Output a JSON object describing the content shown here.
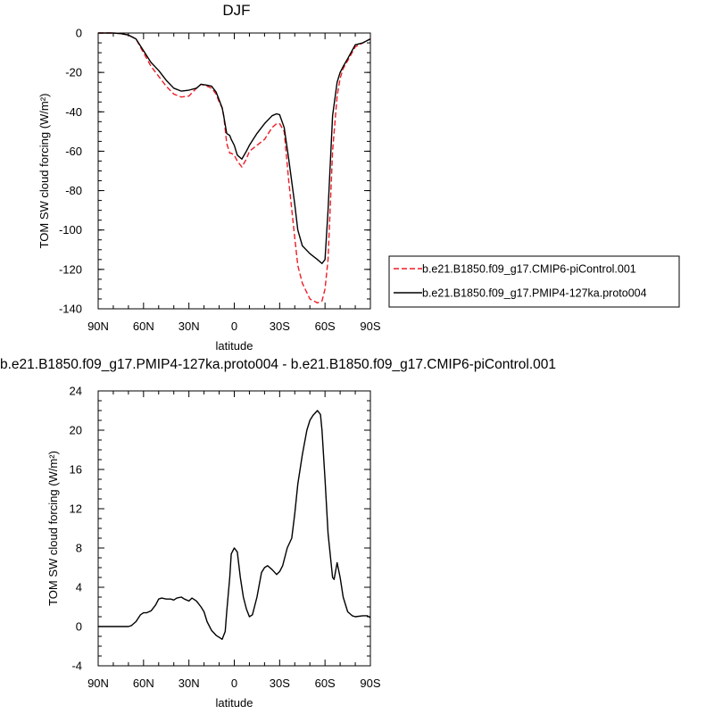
{
  "chart_data": [
    {
      "type": "line",
      "title": "DJF",
      "xlabel": "latitude",
      "ylabel": "TOM SW cloud forcing (W/m²)",
      "xlim": [
        90,
        -90
      ],
      "ylim": [
        -140,
        0
      ],
      "x_ticks": [
        90,
        60,
        30,
        0,
        -30,
        -60,
        -90
      ],
      "x_tick_labels": [
        "90N",
        "60N",
        "30N",
        "0",
        "30S",
        "60S",
        "90S"
      ],
      "y_ticks": [
        0,
        -20,
        -40,
        -60,
        -80,
        -100,
        -120,
        -140
      ],
      "y_tick_labels": [
        "0",
        "-20",
        "-40",
        "-60",
        "-80",
        "-100",
        "-120",
        "-140"
      ],
      "legend_position": "right",
      "series": [
        {
          "name": "b.e21.B1850.f09_g17.CMIP6-piControl.001",
          "color": "#ee1c25",
          "dash": "dashed",
          "x": [
            90,
            80,
            75,
            70,
            65,
            60,
            55,
            50,
            45,
            40,
            35,
            30,
            25,
            22,
            18,
            15,
            12,
            10,
            8,
            7,
            5,
            3,
            2,
            0,
            -2,
            -5,
            -8,
            -10,
            -15,
            -20,
            -25,
            -28,
            -30,
            -33,
            -36,
            -40,
            -42,
            -45,
            -50,
            -55,
            -58,
            -60,
            -62,
            -65,
            -68,
            -70,
            -72,
            -75,
            -80,
            -85,
            -90
          ],
          "y": [
            0,
            0,
            -0.3,
            -1,
            -3,
            -10,
            -17,
            -22,
            -27,
            -31,
            -32.5,
            -32,
            -28,
            -26,
            -27,
            -28,
            -31,
            -35,
            -38,
            -42,
            -56,
            -61,
            -61,
            -62,
            -65,
            -68,
            -64,
            -60,
            -57,
            -54,
            -48,
            -46,
            -46,
            -50,
            -75,
            -104,
            -118,
            -127,
            -135,
            -137,
            -136,
            -130,
            -115,
            -60,
            -32,
            -23,
            -18,
            -14,
            -7,
            -5,
            -3
          ]
        },
        {
          "name": "b.e21.B1850.f09_g17.PMIP4-127ka.proto004",
          "color": "#000000",
          "dash": "solid",
          "x": [
            90,
            80,
            75,
            70,
            65,
            60,
            55,
            50,
            45,
            40,
            35,
            30,
            25,
            22,
            18,
            15,
            12,
            10,
            8,
            7,
            5,
            3,
            2,
            0,
            -2,
            -5,
            -8,
            -10,
            -15,
            -20,
            -25,
            -28,
            -30,
            -33,
            -36,
            -40,
            -42,
            -45,
            -50,
            -55,
            -58,
            -60,
            -62,
            -65,
            -68,
            -70,
            -72,
            -75,
            -80,
            -85,
            -90
          ],
          "y": [
            0,
            0,
            -0.3,
            -1,
            -3,
            -9,
            -15,
            -19,
            -24,
            -28,
            -29.5,
            -29,
            -28,
            -26,
            -26.5,
            -27,
            -30,
            -34,
            -38,
            -42,
            -51,
            -52,
            -54,
            -57,
            -62,
            -64,
            -60,
            -57,
            -51,
            -46,
            -42,
            -41,
            -41.5,
            -48,
            -64,
            -87,
            -100,
            -108,
            -112,
            -115,
            -117,
            -115,
            -90,
            -42,
            -25,
            -20,
            -17,
            -13,
            -6,
            -5,
            -3
          ]
        }
      ]
    },
    {
      "type": "line",
      "title": "b.e21.B1850.f09_g17.PMIP4-127ka.proto004 - b.e21.B1850.f09_g17.CMIP6-piControl.001",
      "xlabel": "latitude",
      "ylabel": "TOM SW cloud forcing (W/m²)",
      "xlim": [
        90,
        -90
      ],
      "ylim": [
        -4,
        24
      ],
      "x_ticks": [
        90,
        60,
        30,
        0,
        -30,
        -60,
        -90
      ],
      "x_tick_labels": [
        "90N",
        "60N",
        "30N",
        "0",
        "30S",
        "60S",
        "90S"
      ],
      "y_ticks": [
        -4,
        0,
        4,
        8,
        12,
        16,
        20,
        24
      ],
      "y_tick_labels": [
        "-4",
        "0",
        "4",
        "8",
        "12",
        "16",
        "20",
        "24"
      ],
      "series": [
        {
          "color": "#000000",
          "dash": "solid",
          "x": [
            90,
            85,
            80,
            75,
            70,
            68,
            65,
            62,
            60,
            58,
            55,
            52,
            50,
            48,
            45,
            42,
            40,
            38,
            35,
            33,
            30,
            28,
            25,
            22,
            20,
            18,
            15,
            12,
            10,
            8,
            6,
            5,
            3,
            2,
            0,
            -2,
            -4,
            -6,
            -8,
            -10,
            -12,
            -15,
            -18,
            -20,
            -22,
            -25,
            -28,
            -30,
            -32,
            -35,
            -38,
            -40,
            -42,
            -45,
            -48,
            -50,
            -52,
            -55,
            -57,
            -58,
            -60,
            -62,
            -63,
            -65,
            -66,
            -68,
            -70,
            -72,
            -75,
            -78,
            -80,
            -85,
            -88,
            -90
          ],
          "y": [
            0,
            0,
            0,
            0,
            0,
            0.1,
            0.5,
            1.2,
            1.4,
            1.4,
            1.6,
            2.2,
            2.8,
            2.9,
            2.8,
            2.8,
            2.7,
            2.9,
            3.0,
            2.8,
            2.6,
            2.9,
            2.6,
            2.0,
            1.5,
            0.5,
            -0.4,
            -0.9,
            -1.1,
            -1.3,
            -0.5,
            1.5,
            5.0,
            7.4,
            8.0,
            7.6,
            5.0,
            3.0,
            1.8,
            1.0,
            1.2,
            3.0,
            5.5,
            6.0,
            6.2,
            5.8,
            5.3,
            5.6,
            6.2,
            8.0,
            9.0,
            11.5,
            14.5,
            17.5,
            20.0,
            21.0,
            21.5,
            22.0,
            21.6,
            20.0,
            15.0,
            9.5,
            8.0,
            5.0,
            4.8,
            6.5,
            5.0,
            3.0,
            1.5,
            1.1,
            1.0,
            1.1,
            1.1,
            0.9
          ]
        }
      ]
    }
  ]
}
